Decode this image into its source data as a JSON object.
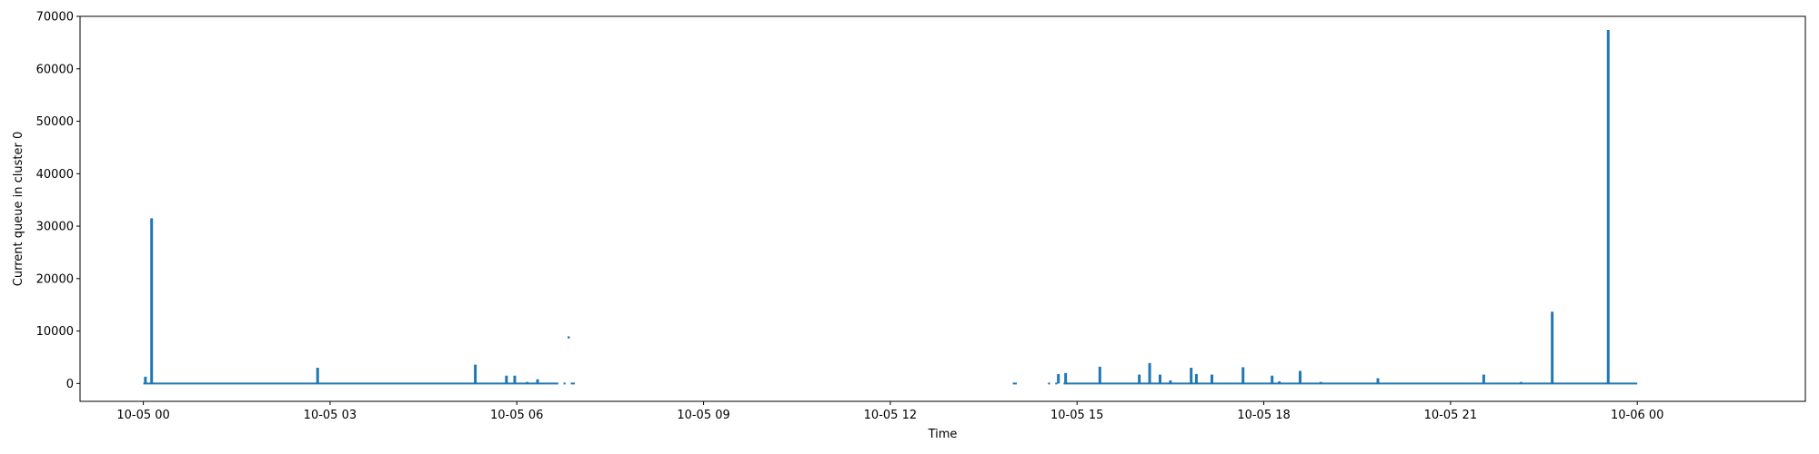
{
  "chart_data": {
    "type": "line",
    "title": "",
    "xlabel": "Time",
    "ylabel": "Current queue in cluster 0",
    "x_axis": {
      "type": "datetime",
      "range": [
        "2024-10-04T22:59:00",
        "2024-10-06T02:42:00"
      ],
      "ticks": [
        {
          "value": "2024-10-05T00:00:00",
          "label": "10-05 00"
        },
        {
          "value": "2024-10-05T03:00:00",
          "label": "10-05 03"
        },
        {
          "value": "2024-10-05T06:00:00",
          "label": "10-05 06"
        },
        {
          "value": "2024-10-05T09:00:00",
          "label": "10-05 09"
        },
        {
          "value": "2024-10-05T12:00:00",
          "label": "10-05 12"
        },
        {
          "value": "2024-10-05T15:00:00",
          "label": "10-05 15"
        },
        {
          "value": "2024-10-05T18:00:00",
          "label": "10-05 18"
        },
        {
          "value": "2024-10-05T21:00:00",
          "label": "10-05 21"
        },
        {
          "value": "2024-10-06T00:00:00",
          "label": "10-06 00"
        }
      ]
    },
    "y_axis": {
      "range": [
        -3400,
        70000
      ],
      "ticks": [
        0,
        10000,
        20000,
        30000,
        40000,
        50000,
        60000,
        70000
      ]
    },
    "grid": false,
    "legend": "none",
    "color": "#1f77b4",
    "baseline_segments": [
      {
        "start": "2024-10-05T00:00:00",
        "end": "2024-10-05T06:40:00"
      },
      {
        "start": "2024-10-05T06:45:00",
        "end": "2024-10-05T06:47:00"
      },
      {
        "start": "2024-10-05T06:52:00",
        "end": "2024-10-05T06:56:00"
      },
      {
        "start": "2024-10-05T13:58:00",
        "end": "2024-10-05T14:02:00"
      },
      {
        "start": "2024-10-05T14:32:00",
        "end": "2024-10-05T14:34:00"
      },
      {
        "start": "2024-10-05T14:39:00",
        "end": "2024-10-05T14:41:00"
      },
      {
        "start": "2024-10-05T14:47:00",
        "end": "2024-10-06T00:00:00"
      }
    ],
    "spikes": [
      {
        "x": "2024-10-05T00:02:00",
        "y": 1300
      },
      {
        "x": "2024-10-05T00:08:00",
        "y": 31500
      },
      {
        "x": "2024-10-05T02:48:00",
        "y": 3000
      },
      {
        "x": "2024-10-05T05:20:00",
        "y": 3600
      },
      {
        "x": "2024-10-05T05:50:00",
        "y": 1500
      },
      {
        "x": "2024-10-05T05:58:00",
        "y": 1500
      },
      {
        "x": "2024-10-05T06:10:00",
        "y": 300
      },
      {
        "x": "2024-10-05T06:20:00",
        "y": 800
      },
      {
        "x": "2024-10-05T14:42:00",
        "y": 1800
      },
      {
        "x": "2024-10-05T14:49:00",
        "y": 2000
      },
      {
        "x": "2024-10-05T15:22:00",
        "y": 3200
      },
      {
        "x": "2024-10-05T16:00:00",
        "y": 1700
      },
      {
        "x": "2024-10-05T16:10:00",
        "y": 3900
      },
      {
        "x": "2024-10-05T16:20:00",
        "y": 1700
      },
      {
        "x": "2024-10-05T16:30:00",
        "y": 600
      },
      {
        "x": "2024-10-05T16:50:00",
        "y": 3000
      },
      {
        "x": "2024-10-05T16:55:00",
        "y": 1800
      },
      {
        "x": "2024-10-05T17:10:00",
        "y": 1700
      },
      {
        "x": "2024-10-05T17:40:00",
        "y": 3100
      },
      {
        "x": "2024-10-05T18:08:00",
        "y": 1500
      },
      {
        "x": "2024-10-05T18:15:00",
        "y": 400
      },
      {
        "x": "2024-10-05T18:35:00",
        "y": 2400
      },
      {
        "x": "2024-10-05T18:55:00",
        "y": 300
      },
      {
        "x": "2024-10-05T19:50:00",
        "y": 1000
      },
      {
        "x": "2024-10-05T21:32:00",
        "y": 1700
      },
      {
        "x": "2024-10-05T22:08:00",
        "y": 300
      },
      {
        "x": "2024-10-05T22:38:00",
        "y": 13700
      },
      {
        "x": "2024-10-05T23:32:00",
        "y": 67400
      }
    ],
    "isolated_points": [
      {
        "x": "2024-10-05T06:50:00",
        "y": 8800
      }
    ]
  }
}
